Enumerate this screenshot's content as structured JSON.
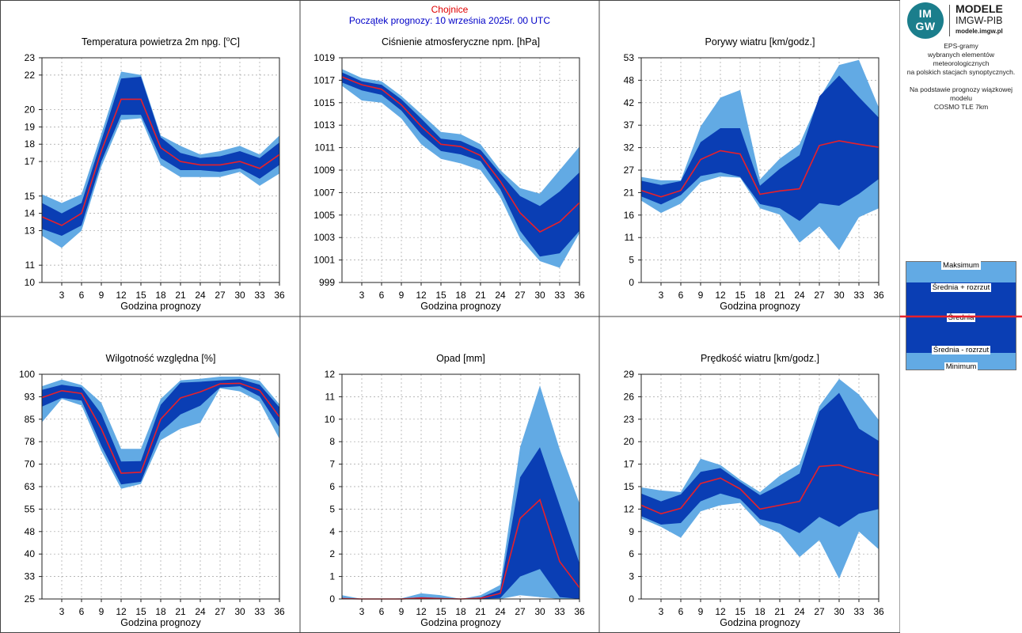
{
  "header": {
    "station": "Chojnice",
    "forecast_start": "Początek prognozy: 10 września 2025r. 00 UTC"
  },
  "logo": {
    "icon": "imgw-logo-icon",
    "mark_line1": "IM",
    "mark_line2": "GW",
    "name1": "MODELE",
    "name2": "IMGW-PIB",
    "url": "modele.imgw.pl"
  },
  "description": {
    "line1": "EPS-gramy",
    "line2": "wybranych elementów meteorologicznych",
    "line3": "na polskich stacjach  synoptycznych.",
    "line4": "Na podstawie prognozy wiązkowej modelu",
    "line5": "COSMO TLE 7km"
  },
  "legend": {
    "max": "Maksimum",
    "mean_plus": "Średnia + rozrzut",
    "mean": "Średnia",
    "mean_minus": "Średnia - rozrzut",
    "min": "Minimum"
  },
  "colors": {
    "envelope": "#62aae4",
    "spread": "#0a3eb4",
    "mean": "#e8202a",
    "station": "#e00000",
    "forecast": "#0000c8",
    "grid": "#a0a0a0"
  },
  "chart_data": [
    {
      "type": "area",
      "title": "Temperatura powietrza 2m npg. [°C]",
      "title_html": "Temperatura powietrza 2m npg. [",
      "title_unit": "C]",
      "xlabel": "Godzina prognozy",
      "ylabel": "",
      "xlim": [
        0,
        36
      ],
      "ylim": [
        10,
        23
      ],
      "xticks": [
        3,
        6,
        9,
        12,
        15,
        18,
        21,
        24,
        27,
        30,
        33,
        36
      ],
      "yticks": [
        10,
        11,
        13,
        14,
        15,
        17,
        18,
        19,
        20,
        22,
        23
      ],
      "ytick_labels": [
        "10",
        "11",
        "13",
        "14",
        "15",
        "17",
        "18",
        "19",
        "20",
        "22",
        "23"
      ],
      "x": [
        0,
        3,
        6,
        9,
        12,
        15,
        18,
        21,
        24,
        27,
        30,
        33,
        36
      ],
      "series": [
        {
          "name": "Maksimum",
          "values": [
            15.1,
            14.6,
            15.1,
            18.6,
            22.2,
            22.0,
            18.5,
            17.9,
            17.4,
            17.6,
            17.9,
            17.4,
            18.5
          ]
        },
        {
          "name": "Średnia + rozrzut",
          "values": [
            14.6,
            14.0,
            14.6,
            18.2,
            21.8,
            21.9,
            18.4,
            17.5,
            17.2,
            17.3,
            17.6,
            17.2,
            18.1
          ]
        },
        {
          "name": "Średnia",
          "values": [
            13.8,
            13.3,
            14.0,
            17.6,
            20.6,
            20.6,
            17.8,
            17.0,
            16.8,
            16.8,
            17.0,
            16.6,
            17.4
          ]
        },
        {
          "name": "Średnia - rozrzut",
          "values": [
            13.1,
            12.7,
            13.3,
            17.0,
            19.7,
            19.7,
            17.2,
            16.5,
            16.5,
            16.4,
            16.6,
            16.0,
            16.8
          ]
        },
        {
          "name": "Minimum",
          "values": [
            12.7,
            12.0,
            13.0,
            16.7,
            19.4,
            19.5,
            16.8,
            16.1,
            16.1,
            16.1,
            16.4,
            15.6,
            16.3
          ]
        }
      ]
    },
    {
      "type": "area",
      "title": "Ciśnienie atmosferyczne npm. [hPa]",
      "xlabel": "Godzina prognozy",
      "ylabel": "",
      "xlim": [
        0,
        36
      ],
      "ylim": [
        999,
        1019
      ],
      "xticks": [
        3,
        6,
        9,
        12,
        15,
        18,
        21,
        24,
        27,
        30,
        33,
        36
      ],
      "yticks": [
        999,
        1001,
        1003,
        1005,
        1007,
        1009,
        1011,
        1013,
        1015,
        1017,
        1019
      ],
      "ytick_labels": [
        "999",
        "1001",
        "1003",
        "1005",
        "1007",
        "1009",
        "1011",
        "1013",
        "1015",
        "1017",
        "1019"
      ],
      "x": [
        0,
        3,
        6,
        9,
        12,
        15,
        18,
        21,
        24,
        27,
        30,
        33,
        36
      ],
      "series": [
        {
          "name": "Maksimum",
          "values": [
            1018.0,
            1017.2,
            1016.9,
            1015.6,
            1014.0,
            1012.4,
            1012.2,
            1011.3,
            1009.0,
            1007.4,
            1006.9,
            1009.0,
            1011.1
          ]
        },
        {
          "name": "Średnia + rozrzut",
          "values": [
            1017.7,
            1016.9,
            1016.6,
            1015.3,
            1013.6,
            1011.8,
            1011.6,
            1010.8,
            1008.7,
            1006.7,
            1005.8,
            1007.1,
            1008.8
          ]
        },
        {
          "name": "Średnia",
          "values": [
            1017.3,
            1016.6,
            1016.2,
            1014.8,
            1012.9,
            1011.3,
            1011.1,
            1010.3,
            1008.0,
            1005.2,
            1003.5,
            1004.4,
            1006.1
          ]
        },
        {
          "name": "Średnia - rozrzut",
          "values": [
            1016.8,
            1016.1,
            1015.7,
            1014.3,
            1012.2,
            1010.7,
            1010.4,
            1009.8,
            1007.3,
            1003.6,
            1001.3,
            1001.6,
            1003.6
          ]
        },
        {
          "name": "Minimum",
          "values": [
            1016.5,
            1015.2,
            1015.0,
            1013.6,
            1011.3,
            1010.0,
            1009.6,
            1009.0,
            1006.6,
            1002.9,
            1000.9,
            1000.3,
            1003.4
          ]
        }
      ]
    },
    {
      "type": "area",
      "title": "Porywy wiatru [km/godz.]",
      "xlabel": "Godzina prognozy",
      "ylabel": "",
      "xlim": [
        0,
        36
      ],
      "ylim": [
        0,
        53
      ],
      "xticks": [
        3,
        6,
        9,
        12,
        15,
        18,
        21,
        24,
        27,
        30,
        33,
        36
      ],
      "yticks": [
        0,
        5.3,
        10.6,
        15.9,
        21.2,
        26.5,
        31.8,
        37.1,
        42.4,
        47.7,
        53
      ],
      "ytick_labels": [
        "0",
        "5",
        "11",
        "16",
        "21",
        "27",
        "32",
        "37",
        "42",
        "48",
        "53"
      ],
      "x": [
        0,
        3,
        6,
        9,
        12,
        15,
        18,
        21,
        24,
        27,
        30,
        33,
        36
      ],
      "series": [
        {
          "name": "Maksimum",
          "values": [
            24.9,
            24.1,
            24.1,
            36.8,
            43.6,
            45.4,
            24.3,
            29.2,
            32.6,
            43.4,
            51.3,
            52.5,
            41.3
          ]
        },
        {
          "name": "Średnia + rozrzut",
          "values": [
            24.0,
            23.0,
            23.9,
            33.1,
            36.4,
            36.4,
            22.8,
            26.8,
            30.0,
            43.9,
            48.8,
            43.7,
            38.9
          ]
        },
        {
          "name": "Średnia",
          "values": [
            21.7,
            20.2,
            21.7,
            29.0,
            31.1,
            30.3,
            20.8,
            21.6,
            22.1,
            32.3,
            33.4,
            32.6,
            31.9
          ]
        },
        {
          "name": "Średnia - rozrzut",
          "values": [
            20.3,
            18.4,
            20.6,
            25.1,
            26.0,
            24.9,
            18.5,
            17.5,
            14.5,
            18.7,
            18.1,
            20.9,
            24.4
          ]
        },
        {
          "name": "Minimum",
          "values": [
            19.3,
            16.4,
            18.6,
            23.6,
            25.0,
            24.7,
            17.5,
            16.0,
            9.4,
            13.2,
            7.6,
            15.4,
            17.5
          ]
        }
      ]
    },
    {
      "type": "area",
      "title": "Wilgotność względna [%]",
      "xlabel": "Godzina prognozy",
      "ylabel": "",
      "xlim": [
        0,
        36
      ],
      "ylim": [
        25,
        100
      ],
      "xticks": [
        3,
        6,
        9,
        12,
        15,
        18,
        21,
        24,
        27,
        30,
        33,
        36
      ],
      "yticks": [
        25,
        32.5,
        40,
        47.5,
        55,
        62.5,
        70,
        77.5,
        85,
        92.5,
        100
      ],
      "ytick_labels": [
        "25",
        "33",
        "40",
        "48",
        "55",
        "63",
        "70",
        "78",
        "85",
        "93",
        "100"
      ],
      "x": [
        0,
        3,
        6,
        9,
        12,
        15,
        18,
        21,
        24,
        27,
        30,
        33,
        36
      ],
      "series": [
        {
          "name": "Maksimum",
          "values": [
            96.0,
            98.2,
            96.4,
            90.5,
            75.1,
            75.1,
            91.8,
            98.0,
            98.5,
            99.2,
            99.2,
            97.8,
            90.0
          ]
        },
        {
          "name": "Średnia + rozrzut",
          "values": [
            94.8,
            96.5,
            95.6,
            86.8,
            70.9,
            71.0,
            89.8,
            97.2,
            97.5,
            98.0,
            98.4,
            96.5,
            89.0
          ]
        },
        {
          "name": "Średnia",
          "values": [
            92.2,
            94.5,
            93.6,
            81.8,
            67.0,
            67.3,
            85.0,
            92.1,
            94.1,
            96.8,
            97.0,
            94.6,
            85.8
          ]
        },
        {
          "name": "Średnia - rozrzut",
          "values": [
            89.2,
            92.1,
            91.2,
            76.2,
            63.2,
            64.1,
            80.7,
            86.6,
            89.5,
            95.6,
            96.0,
            92.6,
            82.3
          ]
        },
        {
          "name": "Minimum",
          "values": [
            84.0,
            91.8,
            89.6,
            74.4,
            61.8,
            63.4,
            78.0,
            81.8,
            83.8,
            95.3,
            94.3,
            90.8,
            78.4
          ]
        }
      ]
    },
    {
      "type": "area",
      "title": "Opad [mm]",
      "xlabel": "Godzina prognozy",
      "ylabel": "",
      "xlim": [
        0,
        36
      ],
      "ylim": [
        0,
        12
      ],
      "xticks": [
        3,
        6,
        9,
        12,
        15,
        18,
        21,
        24,
        27,
        30,
        33,
        36
      ],
      "yticks": [
        0,
        1.2,
        2.4,
        3.6,
        4.8,
        6,
        7.2,
        8.4,
        9.6,
        10.8,
        12
      ],
      "ytick_labels": [
        "0",
        "1",
        "2",
        "4",
        "5",
        "6",
        "7",
        "8",
        "10",
        "11",
        "12"
      ],
      "x": [
        0,
        3,
        6,
        9,
        12,
        15,
        18,
        21,
        24,
        27,
        30,
        33,
        36
      ],
      "series": [
        {
          "name": "Maksimum",
          "values": [
            0.2,
            0.0,
            0.0,
            0.03,
            0.3,
            0.2,
            0.0,
            0.2,
            0.75,
            8.1,
            11.4,
            8.0,
            5.1
          ]
        },
        {
          "name": "Średnia + rozrzut",
          "values": [
            0.05,
            0.0,
            0.0,
            0.0,
            0.1,
            0.05,
            0.0,
            0.08,
            0.5,
            6.5,
            8.1,
            5.0,
            1.9
          ]
        },
        {
          "name": "Średnia",
          "values": [
            0.02,
            0.0,
            0.0,
            0.0,
            0.05,
            0.02,
            0.0,
            0.04,
            0.3,
            4.3,
            5.3,
            2.0,
            0.6
          ]
        },
        {
          "name": "Średnia - rozrzut",
          "values": [
            0.0,
            0.0,
            0.0,
            0.0,
            0.0,
            0.0,
            0.0,
            0.0,
            0.05,
            1.2,
            1.6,
            0.1,
            0.0
          ]
        },
        {
          "name": "Minimum",
          "values": [
            0.0,
            0.0,
            0.0,
            0.0,
            0.0,
            0.0,
            0.0,
            0.0,
            0.0,
            0.2,
            0.1,
            0.0,
            0.0
          ]
        }
      ]
    },
    {
      "type": "area",
      "title": "Prędkość wiatru [km/godz.]",
      "xlabel": "Godzina prognozy",
      "ylabel": "",
      "xlim": [
        0,
        36
      ],
      "ylim": [
        0,
        29
      ],
      "xticks": [
        3,
        6,
        9,
        12,
        15,
        18,
        21,
        24,
        27,
        30,
        33,
        36
      ],
      "yticks": [
        0,
        2.9,
        5.8,
        8.7,
        11.6,
        14.5,
        17.4,
        20.3,
        23.2,
        26.1,
        29
      ],
      "ytick_labels": [
        "0",
        "3",
        "6",
        "9",
        "12",
        "15",
        "17",
        "20",
        "23",
        "26",
        "29"
      ],
      "x": [
        0,
        3,
        6,
        9,
        12,
        15,
        18,
        21,
        24,
        27,
        30,
        33,
        36
      ],
      "series": [
        {
          "name": "Maksimum",
          "values": [
            14.4,
            14.0,
            13.8,
            18.1,
            17.3,
            15.4,
            13.8,
            15.9,
            17.4,
            24.9,
            28.4,
            26.4,
            23.1
          ]
        },
        {
          "name": "Średnia + rozrzut",
          "values": [
            13.6,
            12.6,
            13.5,
            16.4,
            16.9,
            15.1,
            13.4,
            14.7,
            16.2,
            24.2,
            26.6,
            22.0,
            20.4
          ]
        },
        {
          "name": "Średnia",
          "values": [
            12.1,
            11.0,
            11.7,
            14.9,
            15.6,
            14.2,
            11.6,
            12.1,
            12.6,
            17.1,
            17.3,
            16.5,
            15.9
          ]
        },
        {
          "name": "Średnia - rozrzut",
          "values": [
            10.7,
            9.6,
            9.8,
            12.6,
            13.6,
            12.9,
            10.3,
            9.7,
            8.5,
            10.6,
            9.3,
            11.0,
            11.6
          ]
        },
        {
          "name": "Minimum",
          "values": [
            10.4,
            9.3,
            7.9,
            11.3,
            12.1,
            12.4,
            9.6,
            8.5,
            5.4,
            7.6,
            2.6,
            8.7,
            6.4
          ]
        }
      ]
    }
  ]
}
